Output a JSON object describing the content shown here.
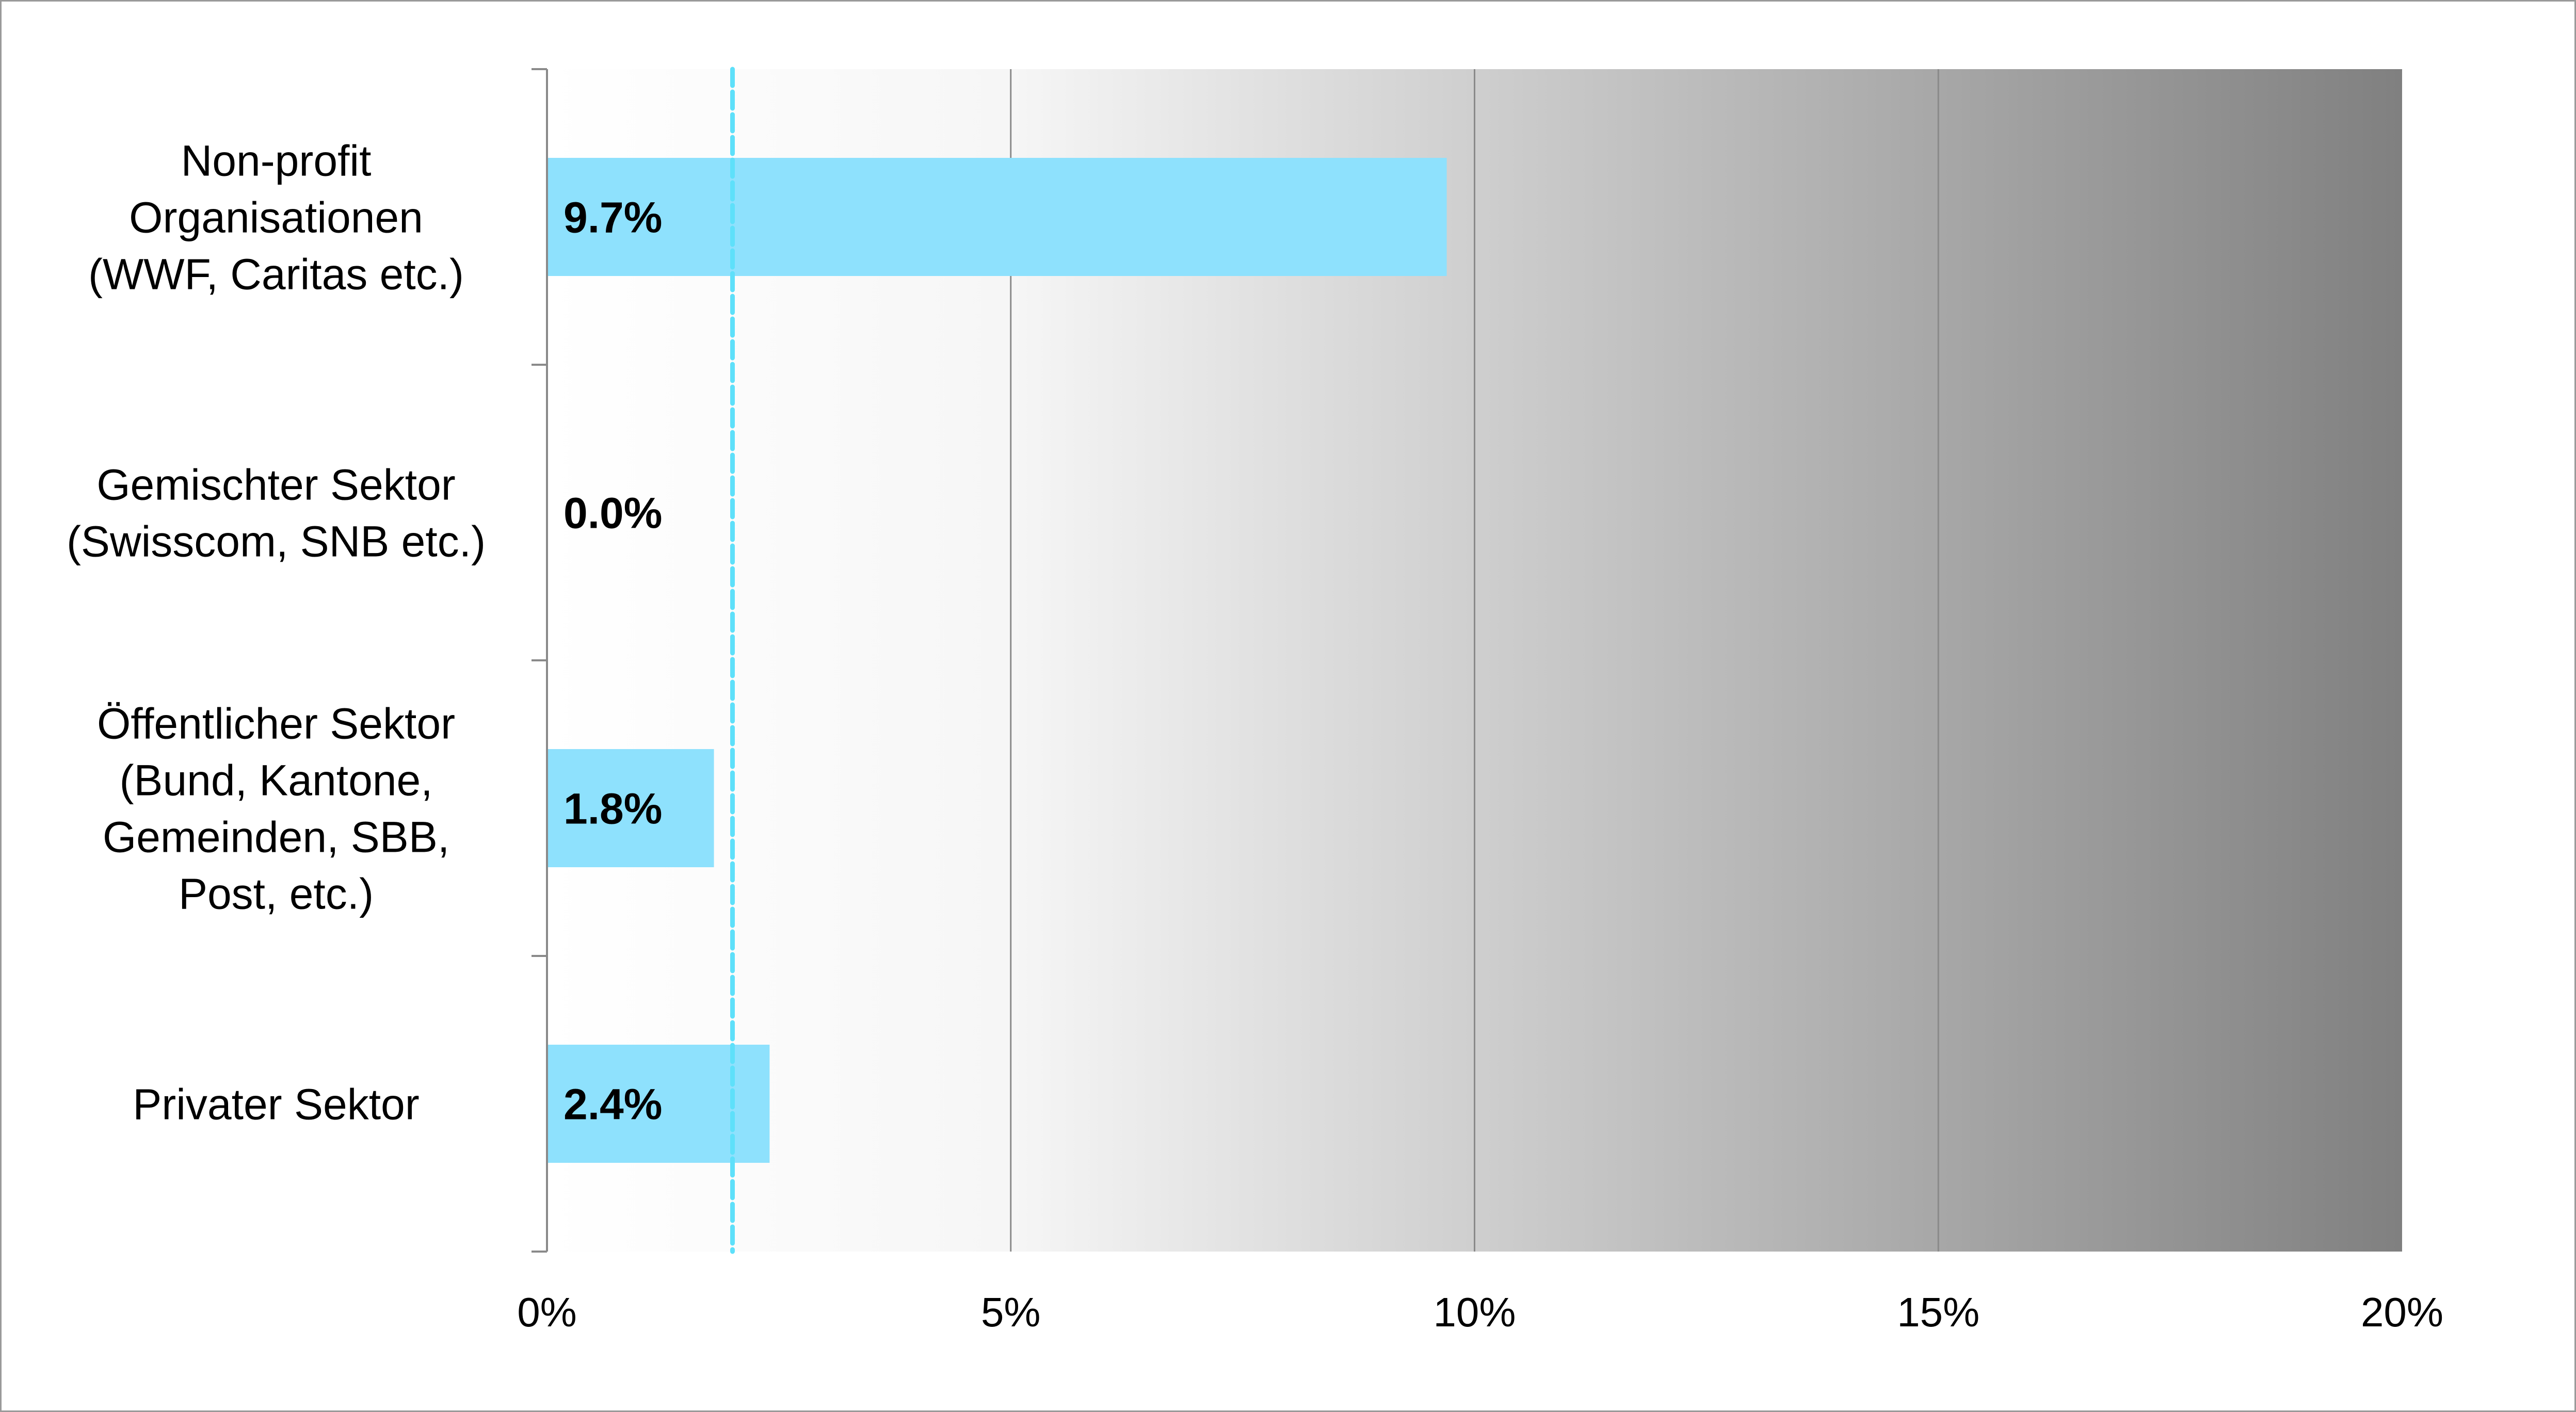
{
  "chart_data": {
    "type": "bar",
    "orientation": "horizontal",
    "categories": [
      [
        "Non-profit",
        "Organisationen",
        "(WWF, Caritas etc.)"
      ],
      [
        "Gemischter Sektor",
        "(Swisscom, SNB etc.)"
      ],
      [
        "Öffentlicher Sektor",
        "(Bund, Kantone,",
        "Gemeinden, SBB,",
        "Post, etc.)"
      ],
      [
        "Privater Sektor"
      ]
    ],
    "values": [
      9.7,
      0.0,
      1.8,
      2.4
    ],
    "data_labels": [
      "9.7%",
      "0.0%",
      "1.8%",
      "2.4%"
    ],
    "xlim": [
      0,
      20
    ],
    "xticks": [
      0,
      5,
      10,
      15,
      20
    ],
    "xtick_labels": [
      "0%",
      "5%",
      "10%",
      "15%",
      "20%"
    ],
    "reference_line": {
      "value": 2.0,
      "style": "dashed",
      "color": "#5ee0fa"
    },
    "grid": "vertical",
    "background_gradient": [
      "#ffffff",
      "#808080"
    ],
    "bar_color": "#8ee1fd",
    "title": "",
    "xlabel": "",
    "ylabel": ""
  }
}
